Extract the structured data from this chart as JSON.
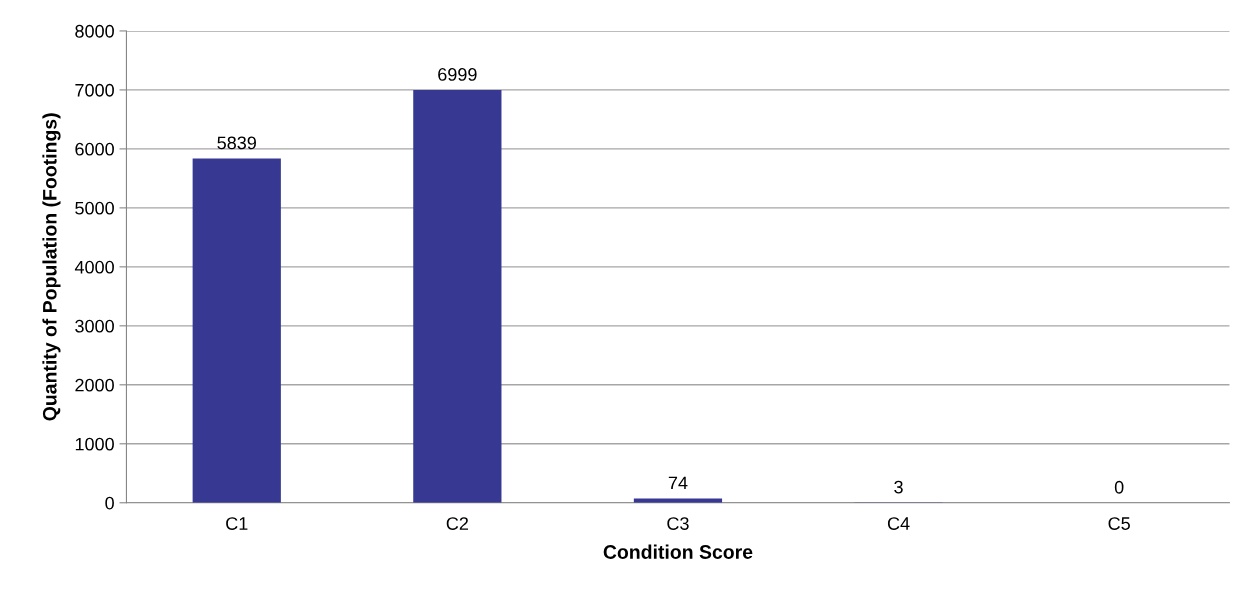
{
  "chart_data": {
    "type": "bar",
    "xlabel": "Condition Score",
    "ylabel": "Quantity of Population (Footings)",
    "categories": [
      "C1",
      "C2",
      "C3",
      "C4",
      "C5"
    ],
    "values": [
      5839,
      6999,
      74,
      3,
      0
    ],
    "color": "#363891",
    "ylim": [
      0,
      8000
    ],
    "yticks": [
      0,
      1000,
      2000,
      3000,
      4000,
      5000,
      6000,
      7000,
      8000
    ],
    "grid": "y",
    "data_labels": true
  }
}
